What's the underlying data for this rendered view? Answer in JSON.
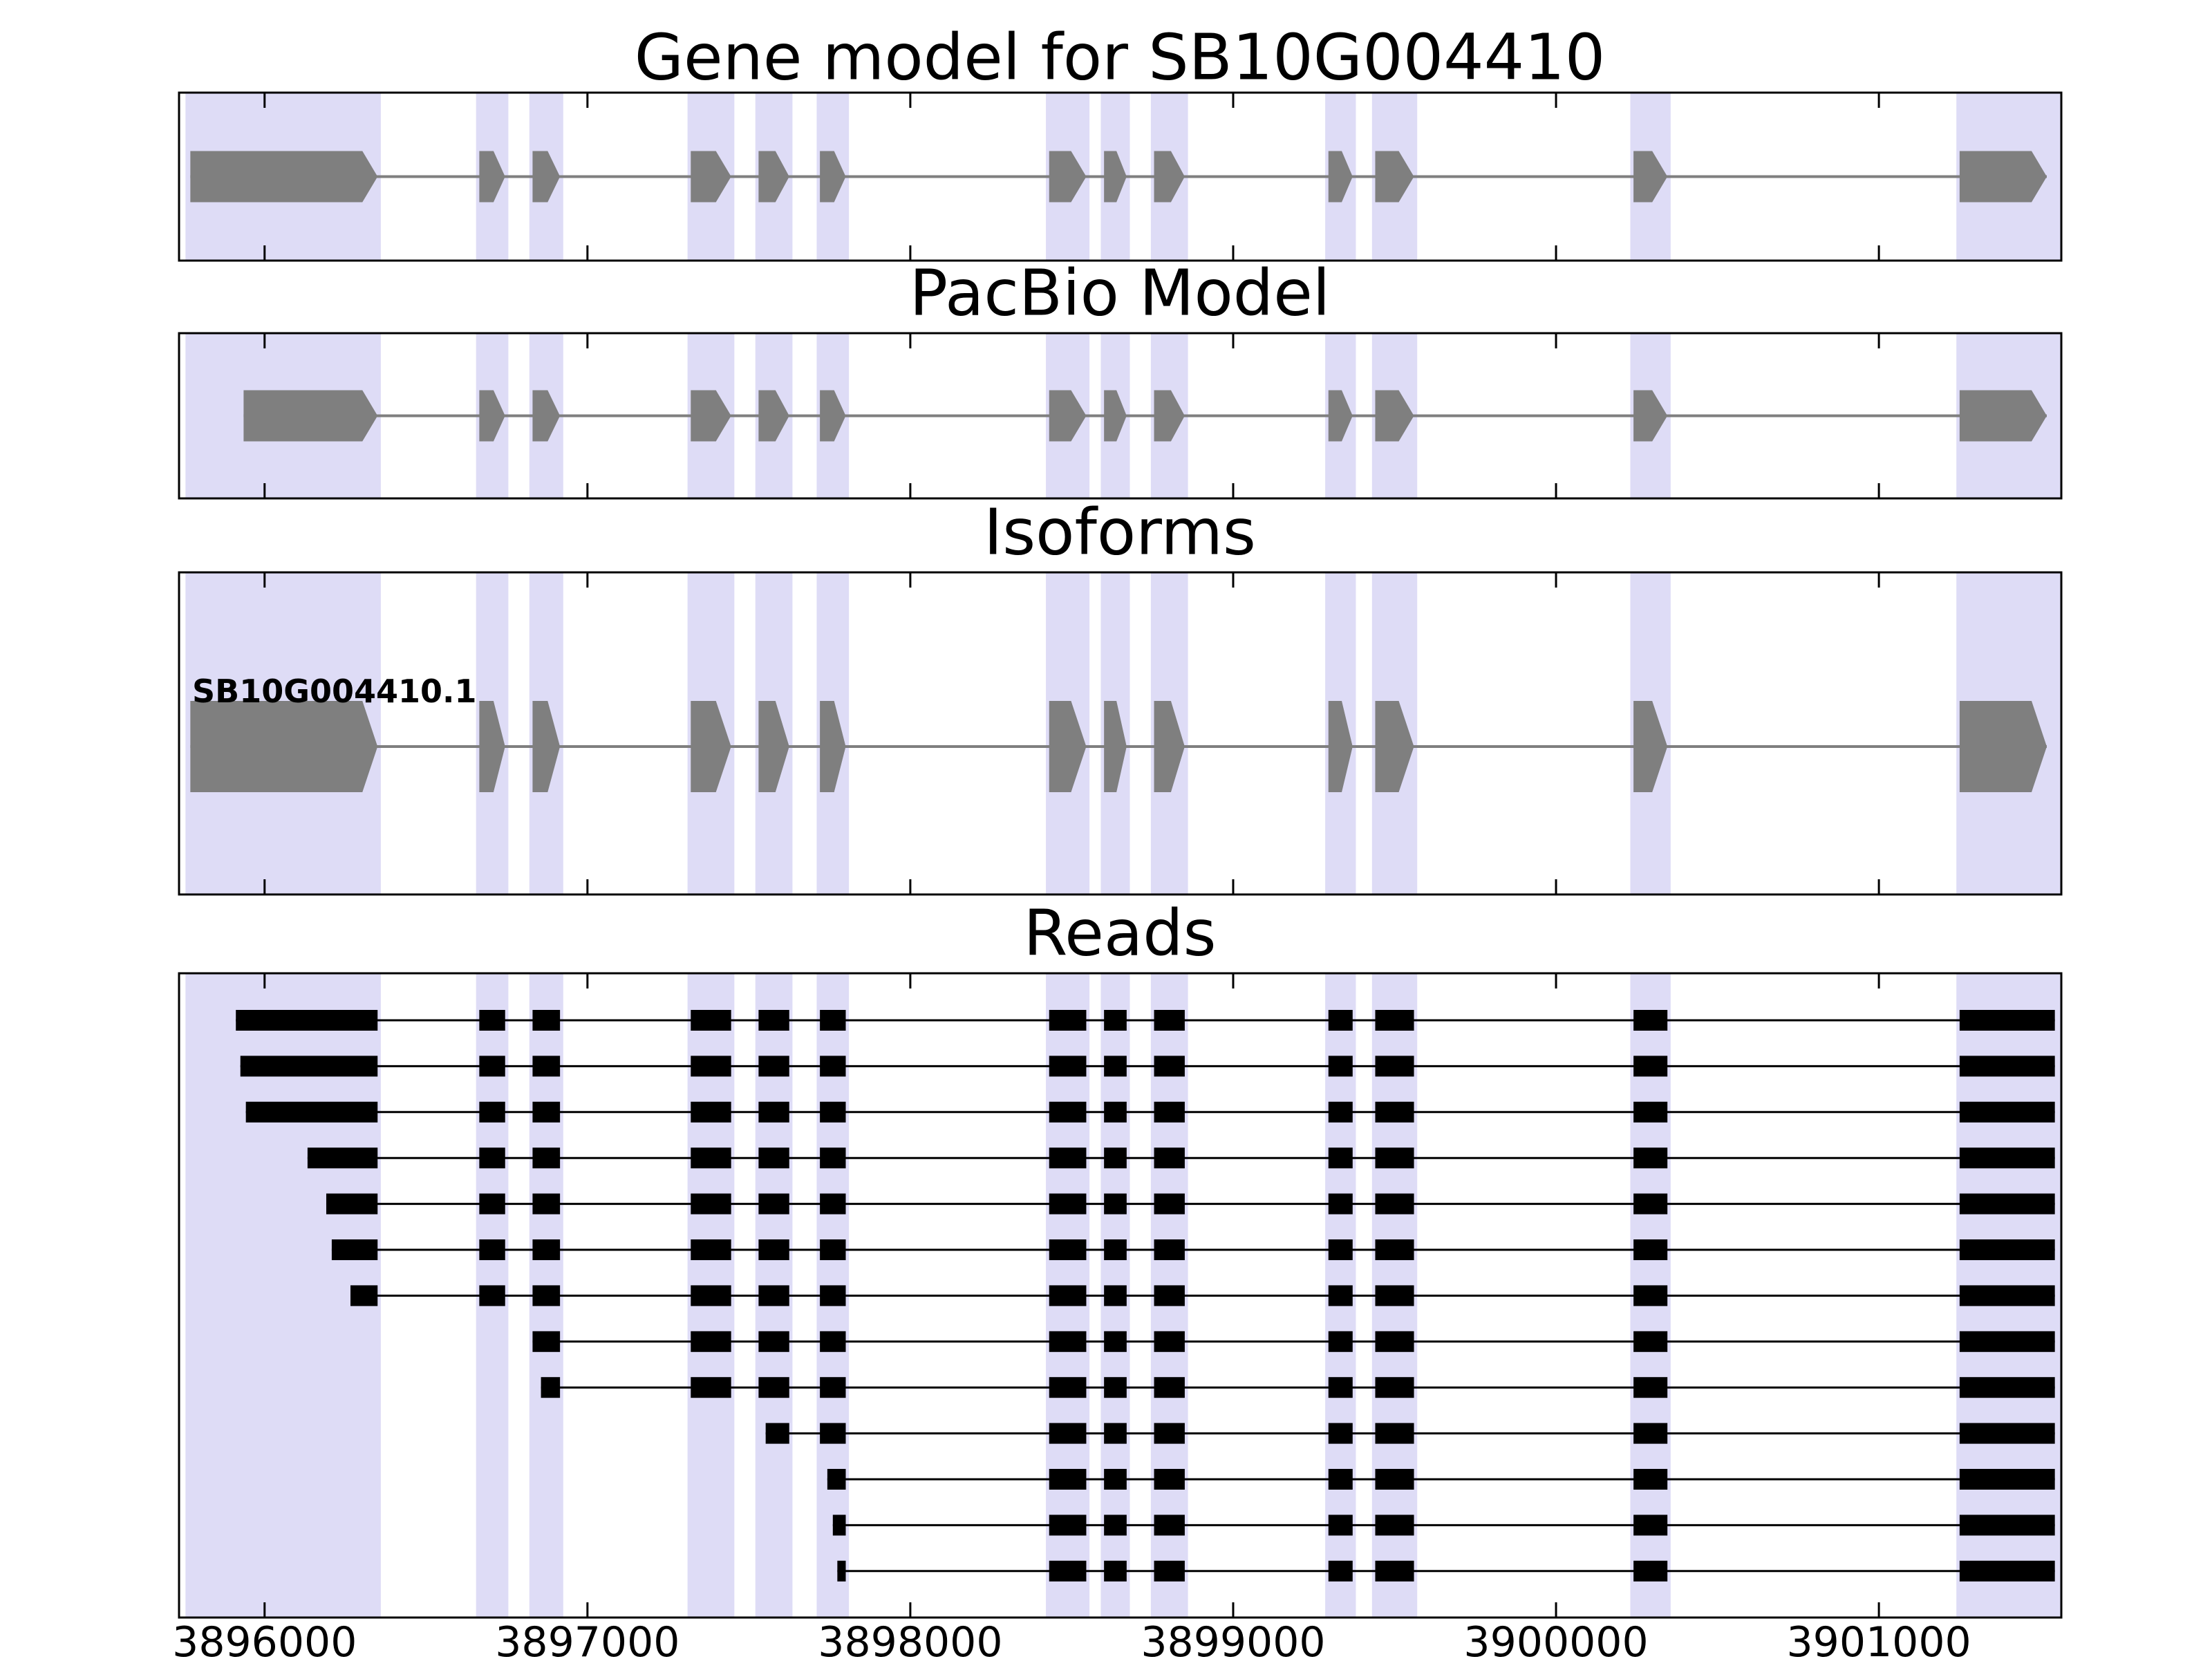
{
  "titles": {
    "gene_model": "Gene model for SB10G004410",
    "pacbio": "PacBio Model",
    "isoforms": "Isoforms",
    "reads": "Reads"
  },
  "isoform_label": "SB10G004410.1",
  "colors": {
    "exon_fill": "#7f7f7f",
    "intron_line": "#7f7f7f",
    "read_fill": "#000000",
    "highlight_band": "#dedcf6",
    "axis": "#000000",
    "background": "#ffffff"
  },
  "chart_data": {
    "type": "gene-model-tracks",
    "title": "Gene model for SB10G004410",
    "xlim": [
      3895735,
      3901565
    ],
    "xticks": [
      3896000,
      3897000,
      3898000,
      3899000,
      3900000,
      3901000
    ],
    "xtick_labels": [
      "3896000",
      "3897000",
      "3898000",
      "3899000",
      "3900000",
      "3901000"
    ],
    "highlight_regions": [
      [
        3895755,
        3896360
      ],
      [
        3896655,
        3896755
      ],
      [
        3896820,
        3896925
      ],
      [
        3897310,
        3897455
      ],
      [
        3897520,
        3897635
      ],
      [
        3897710,
        3897810
      ],
      [
        3898420,
        3898555
      ],
      [
        3898590,
        3898680
      ],
      [
        3898745,
        3898860
      ],
      [
        3899285,
        3899380
      ],
      [
        3899430,
        3899570
      ],
      [
        3900230,
        3900355
      ],
      [
        3901240,
        3901565
      ]
    ],
    "exons": [
      [
        3895770,
        3896350
      ],
      [
        3896665,
        3896745
      ],
      [
        3896830,
        3896915
      ],
      [
        3897320,
        3897445
      ],
      [
        3897530,
        3897625
      ],
      [
        3897720,
        3897800
      ],
      [
        3898430,
        3898545
      ],
      [
        3898600,
        3898670
      ],
      [
        3898755,
        3898850
      ],
      [
        3899295,
        3899370
      ],
      [
        3899440,
        3899560
      ],
      [
        3900240,
        3900345
      ],
      [
        3901250,
        3901520
      ]
    ],
    "tracks": [
      {
        "name": "Gene model",
        "title": "Gene model for SB10G004410",
        "first_exon_start": 3895770
      },
      {
        "name": "PacBio Model",
        "title": "PacBio Model",
        "first_exon_start": 3895935
      },
      {
        "name": "Isoform",
        "title": "Isoforms",
        "label": "SB10G004410.1",
        "first_exon_start": 3895770
      }
    ],
    "reads": {
      "title": "Reads",
      "end": 3901545,
      "starts": [
        3895911,
        3895925,
        3895942,
        3896133,
        3896191,
        3896208,
        3896266,
        3896830,
        3896856,
        3897552,
        3897743,
        3897760,
        3897774
      ]
    }
  }
}
